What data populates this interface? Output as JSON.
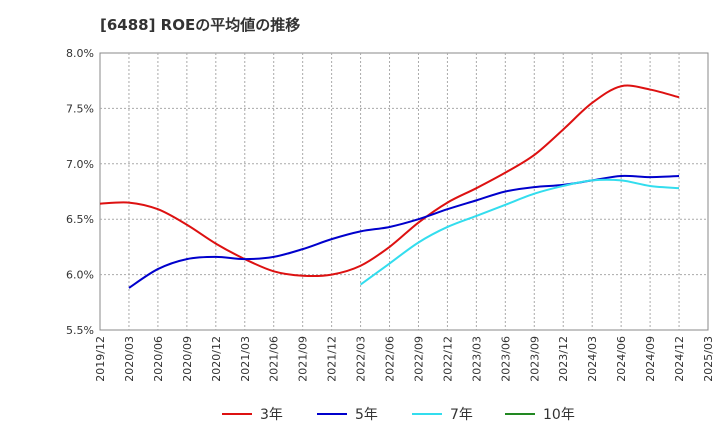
{
  "chart_data": {
    "type": "line",
    "title": "[6488]  ROEの平均値の推移",
    "xlabel": "",
    "ylabel": "",
    "ylim": [
      5.5,
      8.0
    ],
    "y_ticks": [
      "5.5%",
      "6.0%",
      "6.5%",
      "7.0%",
      "7.5%",
      "8.0%"
    ],
    "y_tick_values": [
      5.5,
      6.0,
      6.5,
      7.0,
      7.5,
      8.0
    ],
    "categories": [
      "2019/12",
      "2020/03",
      "2020/06",
      "2020/09",
      "2020/12",
      "2021/03",
      "2021/06",
      "2021/09",
      "2021/12",
      "2022/03",
      "2022/06",
      "2022/09",
      "2022/12",
      "2023/03",
      "2023/06",
      "2023/09",
      "2023/12",
      "2024/03",
      "2024/06",
      "2024/09",
      "2024/12",
      "2025/03"
    ],
    "grid": true,
    "legend_position": "bottom",
    "series": [
      {
        "name": "3年",
        "color": "#dd1111",
        "values": [
          6.64,
          6.65,
          6.59,
          6.45,
          6.28,
          6.14,
          6.03,
          5.99,
          6.0,
          6.08,
          6.25,
          6.47,
          6.65,
          6.78,
          6.92,
          7.08,
          7.31,
          7.55,
          7.7,
          7.67,
          7.6,
          null
        ]
      },
      {
        "name": "5年",
        "color": "#0000cc",
        "values": [
          null,
          5.88,
          6.05,
          6.14,
          6.16,
          6.14,
          6.16,
          6.23,
          6.32,
          6.39,
          6.43,
          6.5,
          6.59,
          6.67,
          6.75,
          6.79,
          6.81,
          6.85,
          6.89,
          6.88,
          6.89,
          null
        ]
      },
      {
        "name": "7年",
        "color": "#33ddee",
        "values": [
          null,
          null,
          null,
          null,
          null,
          null,
          null,
          null,
          null,
          5.91,
          6.1,
          6.29,
          6.43,
          6.53,
          6.63,
          6.73,
          6.8,
          6.85,
          6.85,
          6.8,
          6.78,
          null
        ]
      },
      {
        "name": "10年",
        "color": "#228822",
        "values": [
          null,
          null,
          null,
          null,
          null,
          null,
          null,
          null,
          null,
          null,
          null,
          null,
          null,
          null,
          null,
          null,
          null,
          null,
          null,
          null,
          null,
          null
        ]
      }
    ]
  }
}
